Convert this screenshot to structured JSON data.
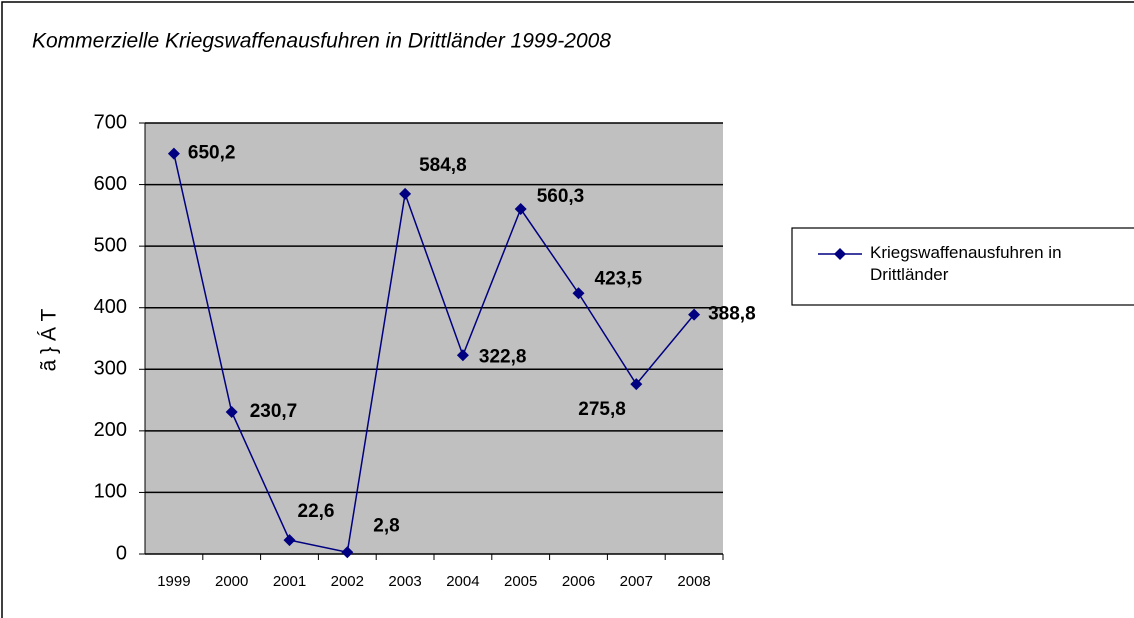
{
  "chart_data": {
    "type": "line",
    "title": "Kommerzielle Kriegswaffenausfuhren in Drittländer 1999-2008",
    "y_label": "ã } Á T",
    "categories": [
      "1999",
      "2000",
      "2001",
      "2002",
      "2003",
      "2004",
      "2005",
      "2006",
      "2007",
      "2008"
    ],
    "series": [
      {
        "name": "Kriegswaffenausfuhren in Drittländer",
        "color": "#000080",
        "values": [
          650.2,
          230.7,
          22.6,
          2.8,
          584.8,
          322.8,
          560.3,
          423.5,
          275.8,
          388.8
        ],
        "value_labels": [
          "650,2",
          "230,7",
          "22,6",
          "2,8",
          "584,8",
          "322,8",
          "560,3",
          "423,5",
          "275,8",
          "388,8"
        ]
      }
    ],
    "ylim": [
      0,
      700
    ],
    "yticks": [
      0,
      100,
      200,
      300,
      400,
      500,
      600,
      700
    ],
    "grid": true,
    "legend": "right"
  }
}
